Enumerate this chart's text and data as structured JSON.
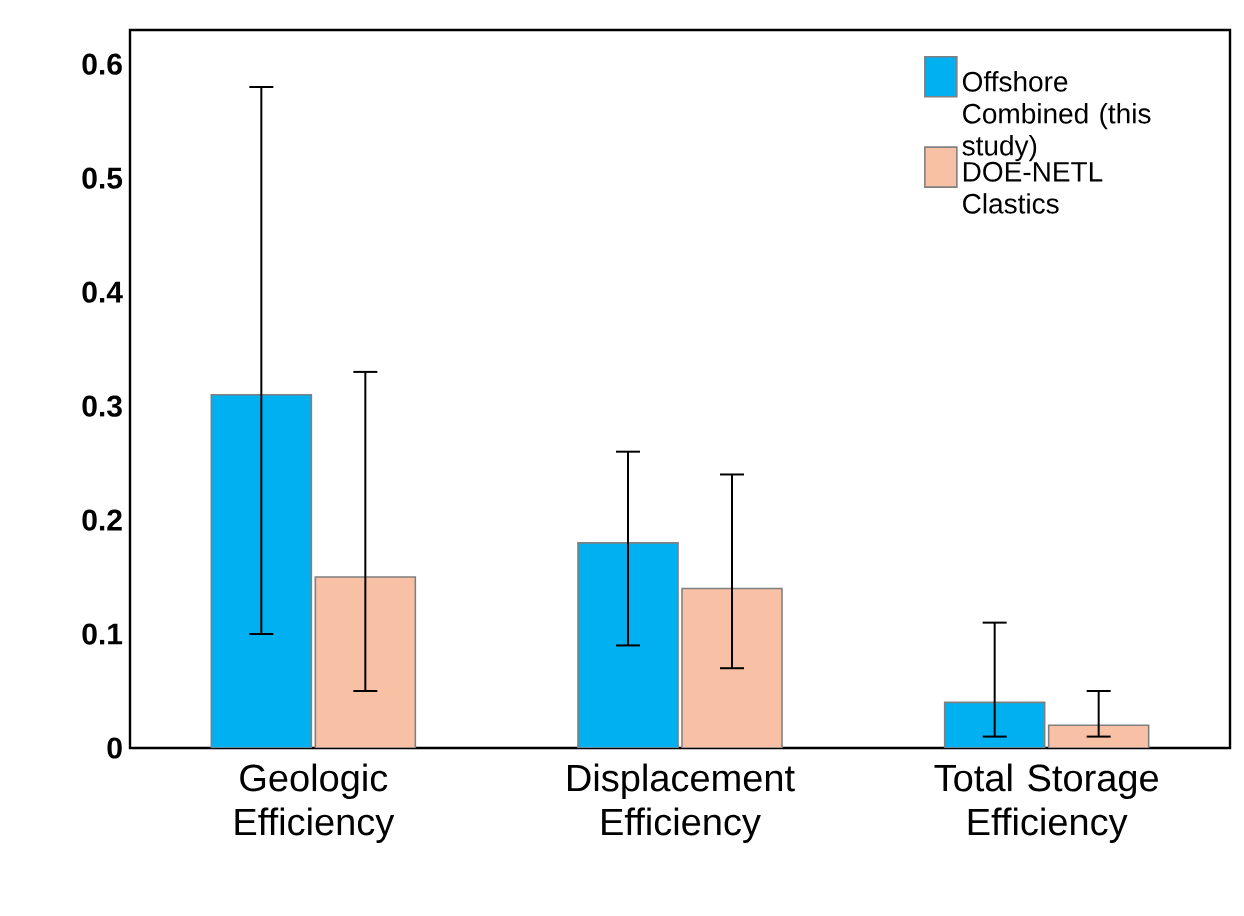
{
  "chart_data": {
    "type": "bar",
    "categories": [
      "Geologic Efficiency",
      "Displacement Efficiency",
      "Total Storage Efficiency"
    ],
    "series": [
      {
        "name": "Offshore Combined (this study)",
        "color": "#00b0f0",
        "values": [
          0.31,
          0.18,
          0.04
        ],
        "errors": [
          [
            0.1,
            0.58
          ],
          [
            0.09,
            0.26
          ],
          [
            0.01,
            0.11
          ]
        ]
      },
      {
        "name": "DOE-NETL Clastics",
        "color": "#f8c0a4",
        "values": [
          0.15,
          0.14,
          0.02
        ],
        "errors": [
          [
            0.05,
            0.33
          ],
          [
            0.07,
            0.24
          ],
          [
            0.01,
            0.05
          ]
        ]
      }
    ],
    "ylim": [
      0,
      0.63
    ],
    "yticks": [
      0,
      0.1,
      0.2,
      0.3,
      0.4,
      0.5,
      0.6
    ],
    "grid": false,
    "legend": "top right"
  }
}
